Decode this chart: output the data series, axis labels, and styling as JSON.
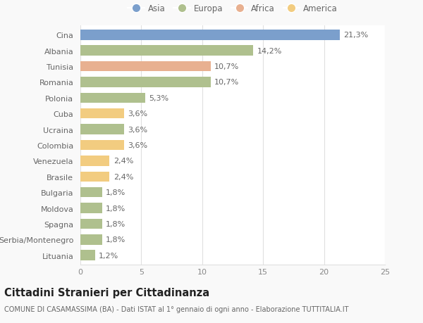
{
  "countries": [
    "Cina",
    "Albania",
    "Tunisia",
    "Romania",
    "Polonia",
    "Cuba",
    "Ucraina",
    "Colombia",
    "Venezuela",
    "Brasile",
    "Bulgaria",
    "Moldova",
    "Spagna",
    "Serbia/Montenegro",
    "Lituania"
  ],
  "values": [
    21.3,
    14.2,
    10.7,
    10.7,
    5.3,
    3.6,
    3.6,
    3.6,
    2.4,
    2.4,
    1.8,
    1.8,
    1.8,
    1.8,
    1.2
  ],
  "labels": [
    "21,3%",
    "14,2%",
    "10,7%",
    "10,7%",
    "5,3%",
    "3,6%",
    "3,6%",
    "3,6%",
    "2,4%",
    "2,4%",
    "1,8%",
    "1,8%",
    "1,8%",
    "1,8%",
    "1,2%"
  ],
  "colors": [
    "#7b9fcc",
    "#afc08e",
    "#e8b090",
    "#afc08e",
    "#afc08e",
    "#f2cc80",
    "#afc08e",
    "#f2cc80",
    "#f2cc80",
    "#f2cc80",
    "#afc08e",
    "#afc08e",
    "#afc08e",
    "#afc08e",
    "#afc08e"
  ],
  "legend_labels": [
    "Asia",
    "Europa",
    "Africa",
    "America"
  ],
  "legend_colors": [
    "#7b9fcc",
    "#afc08e",
    "#e8b090",
    "#f2cc80"
  ],
  "title": "Cittadini Stranieri per Cittadinanza",
  "subtitle": "COMUNE DI CASAMASSIMA (BA) - Dati ISTAT al 1° gennaio di ogni anno - Elaborazione TUTTITALIA.IT",
  "xlim": [
    0,
    25
  ],
  "xticks": [
    0,
    5,
    10,
    15,
    20,
    25
  ],
  "background_color": "#f9f9f9",
  "bar_background": "#ffffff",
  "grid_color": "#e0e0e0",
  "bar_height": 0.65,
  "label_fontsize": 8,
  "tick_fontsize": 8,
  "title_fontsize": 10.5,
  "subtitle_fontsize": 7
}
